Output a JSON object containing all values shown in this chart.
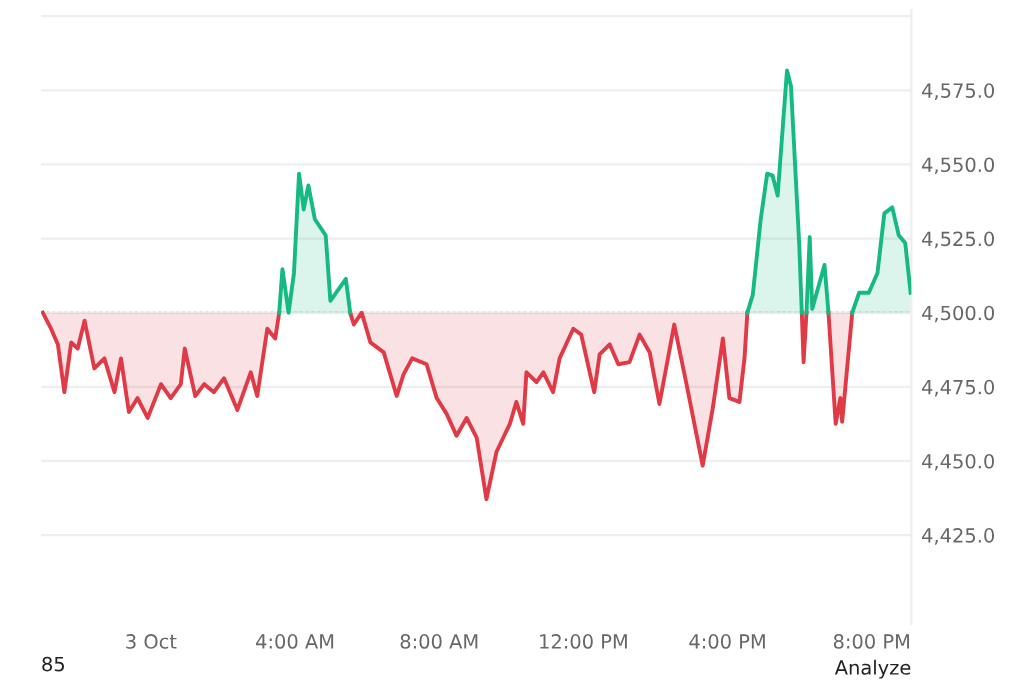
{
  "chart_data": {
    "type": "line",
    "x": [
      -3.0,
      -2.77,
      -2.58,
      -2.4,
      -2.21,
      -2.03,
      -1.84,
      -1.57,
      -1.29,
      -1.01,
      -0.83,
      -0.61,
      -0.37,
      -0.09,
      0.28,
      0.55,
      0.83,
      0.94,
      1.23,
      1.48,
      1.75,
      2.03,
      2.4,
      2.77,
      2.95,
      3.23,
      3.45,
      3.56,
      3.65,
      3.82,
      3.97,
      4.11,
      4.24,
      4.37,
      4.55,
      4.85,
      4.98,
      5.41,
      5.53,
      5.63,
      5.85,
      6.09,
      6.46,
      6.82,
      7.01,
      7.25,
      7.65,
      7.93,
      8.21,
      8.48,
      8.76,
      9.04,
      9.31,
      9.59,
      9.96,
      10.14,
      10.33,
      10.42,
      10.7,
      10.89,
      11.16,
      11.34,
      11.72,
      11.94,
      12.3,
      12.45,
      12.73,
      12.97,
      13.28,
      13.56,
      13.84,
      14.11,
      14.52,
      14.85,
      15.31,
      15.59,
      15.87,
      16.05,
      16.33,
      16.47,
      16.55,
      16.7,
      16.92,
      17.1,
      17.25,
      17.39,
      17.65,
      17.76,
      17.99,
      18.06,
      18.11,
      18.19,
      18.28,
      18.35,
      18.69,
      18.8,
      19.0,
      19.13,
      19.18,
      19.46,
      19.65,
      19.92,
      20.16,
      20.35,
      20.57,
      20.75,
      20.93,
      21.08
    ],
    "series": [
      {
        "color": "#e03a47",
        "values": [
          4500,
          4494.6,
          4489.3,
          4473.2,
          4490.0,
          4487.9,
          4497.3,
          4481.2,
          4484.6,
          4473.2,
          4484.6,
          4466.5,
          4471.2,
          4464.5,
          4475.9,
          4471.2,
          4475.9,
          4487.9,
          4471.9,
          4475.9,
          4473.2,
          4477.9,
          4467.2,
          4479.9,
          4471.9,
          4494.6,
          4491.3,
          4500,
          null,
          null,
          null,
          null,
          null,
          null,
          null,
          null,
          null,
          null,
          4500,
          4496.0,
          4500,
          4490.0,
          4486.6,
          4471.9,
          4479.2,
          4484.6,
          4482.6,
          4471.2,
          4465.8,
          4458.5,
          4464.5,
          4457.8,
          4437.1,
          4453.1,
          4462.5,
          4469.9,
          4462.5,
          4479.9,
          4476.6,
          4479.9,
          4473.2,
          4484.6,
          4494.6,
          4492.6,
          4473.2,
          4485.9,
          4489.3,
          4482.6,
          4483.3,
          4492.6,
          4486.6,
          4469.2,
          4496.0,
          4476.6,
          4448.4,
          4467.8,
          4491.3,
          4471.2,
          4469.9,
          4484.6,
          4500,
          null,
          null,
          null,
          null,
          null,
          null,
          null,
          null,
          4500,
          4483.3,
          4500,
          null,
          null,
          null,
          4500,
          4462.5,
          4471.2,
          4463.2,
          4500,
          null,
          null,
          null,
          null,
          null,
          null,
          null,
          null
        ],
        "lower": [
          4500,
          4494.6,
          4489.3,
          4473.2,
          4490.0,
          4487.9,
          4497.3,
          4481.2,
          4484.6,
          4473.2,
          4484.6,
          4466.5,
          4471.2,
          4464.5,
          4475.9,
          4471.2,
          4475.9,
          4487.9,
          4471.9,
          4475.9,
          4473.2,
          4477.9,
          4467.2,
          4479.9,
          4471.9,
          4494.6,
          4491.3,
          4500,
          null,
          null,
          null,
          null,
          null,
          null,
          null,
          null,
          null,
          null,
          4500,
          4496.0,
          4500,
          4490.0,
          4486.6,
          4471.9,
          4479.2,
          4484.6,
          4482.6,
          4471.2,
          4465.8,
          4458.5,
          4464.5,
          4457.8,
          4437.1,
          4453.1,
          4462.5,
          4469.9,
          4462.5,
          4479.9,
          4476.6,
          4479.9,
          4473.2,
          4484.6,
          4494.6,
          4492.6,
          4473.2,
          4485.9,
          4489.3,
          4482.6,
          4483.3,
          4492.6,
          4486.6,
          4469.2,
          4496.0,
          4476.6,
          4448.4,
          4467.8,
          4491.3,
          4471.2,
          4469.9,
          4484.6,
          4500,
          null,
          null,
          null,
          null,
          null,
          null,
          null,
          null,
          4500,
          4483.3,
          4500,
          null,
          null,
          null,
          4500,
          4462.5,
          4471.2,
          4463.2,
          4500,
          null,
          null,
          null,
          null,
          null,
          null,
          null,
          null
        ],
        "upper": [
          4500,
          4500,
          4500,
          4500,
          4500,
          4500,
          4500,
          4500,
          4500,
          4500,
          4500,
          4500,
          4500,
          4500,
          4500,
          4500,
          4500,
          4500,
          4500,
          4500,
          4500,
          4500,
          4500,
          4500,
          4500,
          4500,
          4500,
          4500,
          null,
          null,
          null,
          null,
          null,
          null,
          null,
          null,
          null,
          null,
          4500,
          4500,
          4500,
          4500,
          4500,
          4500,
          4500,
          4500,
          4500,
          4500,
          4500,
          4500,
          4500,
          4500,
          4500,
          4500,
          4500,
          4500,
          4500,
          4500,
          4500,
          4500,
          4500,
          4500,
          4500,
          4500,
          4500,
          4500,
          4500,
          4500,
          4500,
          4500,
          4500,
          4500,
          4500,
          4500,
          4500,
          4500,
          4500,
          4500,
          4500,
          4500,
          4500,
          null,
          null,
          null,
          null,
          null,
          null,
          null,
          null,
          4500,
          4500,
          4500,
          null,
          null,
          null,
          4500,
          4500,
          4500,
          4500,
          4500,
          null,
          null,
          null,
          null,
          null,
          null,
          null,
          null
        ]
      },
      {
        "color": "#16b980",
        "values": [
          null,
          null,
          null,
          null,
          null,
          null,
          null,
          null,
          null,
          null,
          null,
          null,
          null,
          null,
          null,
          null,
          null,
          null,
          null,
          null,
          null,
          null,
          null,
          null,
          null,
          null,
          null,
          4500,
          4514.7,
          4500,
          4513.4,
          4546.9,
          4534.8,
          4542.9,
          4531.5,
          4526.1,
          4504.0,
          4511.4,
          4500,
          null,
          null,
          null,
          null,
          null,
          null,
          null,
          null,
          null,
          null,
          null,
          null,
          null,
          null,
          null,
          null,
          null,
          null,
          null,
          null,
          null,
          null,
          null,
          null,
          null,
          null,
          null,
          null,
          null,
          null,
          null,
          null,
          null,
          null,
          null,
          null,
          null,
          null,
          null,
          null,
          null,
          4500,
          4506.0,
          4531.5,
          4546.9,
          4546.2,
          4539.5,
          4581.7,
          4576.4,
          4522.8,
          4500,
          null,
          4500,
          4525.5,
          4501.3,
          4516.1,
          4500,
          null,
          null,
          null,
          4500,
          4506.7,
          4506.7,
          4513.4,
          4533.5,
          4535.5,
          4526.1,
          4523.5,
          4506.7
        ],
        "lower": [
          null,
          null,
          null,
          null,
          null,
          null,
          null,
          null,
          null,
          null,
          null,
          null,
          null,
          null,
          null,
          null,
          null,
          null,
          null,
          null,
          null,
          null,
          null,
          null,
          null,
          null,
          null,
          4500,
          4500,
          4500,
          4500,
          4500,
          4500,
          4500,
          4500,
          4500,
          4500,
          4500,
          4500,
          null,
          null,
          null,
          null,
          null,
          null,
          null,
          null,
          null,
          null,
          null,
          null,
          null,
          null,
          null,
          null,
          null,
          null,
          null,
          null,
          null,
          null,
          null,
          null,
          null,
          null,
          null,
          null,
          null,
          null,
          null,
          null,
          null,
          null,
          null,
          null,
          null,
          null,
          null,
          null,
          null,
          4500,
          4500,
          4500,
          4500,
          4500,
          4500,
          4500,
          4500,
          4500,
          4500,
          null,
          4500,
          4500,
          4500,
          4500,
          4500,
          null,
          null,
          null,
          4500,
          4500,
          4500,
          4500,
          4500,
          4500,
          4500,
          4500,
          4500
        ],
        "upper": [
          null,
          null,
          null,
          null,
          null,
          null,
          null,
          null,
          null,
          null,
          null,
          null,
          null,
          null,
          null,
          null,
          null,
          null,
          null,
          null,
          null,
          null,
          null,
          null,
          null,
          null,
          null,
          4500,
          4514.7,
          4500,
          4513.4,
          4546.9,
          4534.8,
          4542.9,
          4531.5,
          4526.1,
          4504.0,
          4511.4,
          4500,
          null,
          null,
          null,
          null,
          null,
          null,
          null,
          null,
          null,
          null,
          null,
          null,
          null,
          null,
          null,
          null,
          null,
          null,
          null,
          null,
          null,
          null,
          null,
          null,
          null,
          null,
          null,
          null,
          null,
          null,
          null,
          null,
          null,
          null,
          null,
          null,
          null,
          null,
          null,
          null,
          null,
          4500,
          4506.0,
          4531.5,
          4546.9,
          4546.2,
          4539.5,
          4581.7,
          4576.4,
          4522.8,
          4500,
          null,
          4500,
          4525.5,
          4501.3,
          4516.1,
          4500,
          null,
          null,
          null,
          4500,
          4506.7,
          4506.7,
          4513.4,
          4533.5,
          4535.5,
          4526.1,
          4523.5,
          4506.7
        ]
      }
    ],
    "xlim": [
      -3.05,
      21.1
    ],
    "xticks": [
      {
        "value": 0,
        "label": "3 Oct"
      },
      {
        "value": 4,
        "label": "4:00 AM"
      },
      {
        "value": 8,
        "label": "8:00 AM"
      },
      {
        "value": 12,
        "label": "12:00 PM"
      },
      {
        "value": 16,
        "label": "4:00 PM"
      },
      {
        "value": 20,
        "label": "8:00 PM"
      }
    ],
    "ylim": [
      4395,
      4602
    ],
    "yticks": [
      {
        "value": 4425,
        "label": "4,425.0"
      },
      {
        "value": 4450,
        "label": "4,450.0"
      },
      {
        "value": 4475,
        "label": "4,475.0"
      },
      {
        "value": 4500,
        "label": "4,500.0"
      },
      {
        "value": 4525,
        "label": "4,525.0"
      },
      {
        "value": 4550,
        "label": "4,550.0"
      },
      {
        "value": 4575,
        "label": "4,575.0"
      },
      {
        "value": 4600,
        "label": null
      }
    ],
    "ref_lines": [
      {
        "axis": "y",
        "value": 4500,
        "color": "#aaaaaa",
        "line_style": "dotted"
      }
    ],
    "grid": "y",
    "legend": false,
    "line_style": "solid",
    "marker": "none",
    "annotations": [
      "85",
      "Analyze"
    ]
  }
}
